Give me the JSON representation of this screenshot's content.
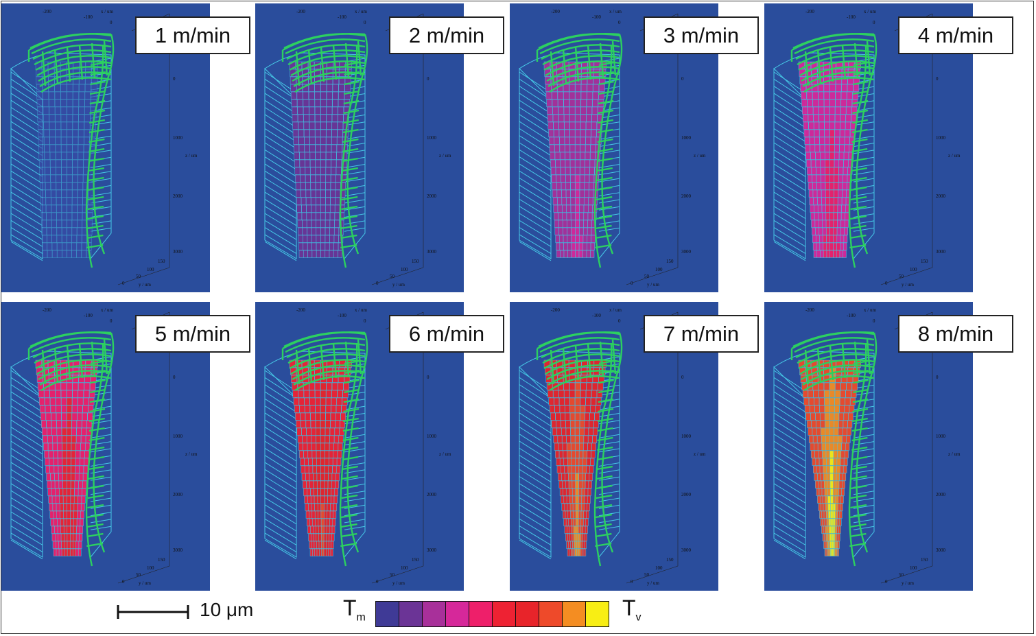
{
  "figure": {
    "panels": [
      {
        "label": "1 m/min",
        "heat": 0
      },
      {
        "label": "2 m/min",
        "heat": 1
      },
      {
        "label": "3 m/min",
        "heat": 2
      },
      {
        "label": "4 m/min",
        "heat": 3
      },
      {
        "label": "5 m/min",
        "heat": 4
      },
      {
        "label": "6 m/min",
        "heat": 5
      },
      {
        "label": "7 m/min",
        "heat": 6
      },
      {
        "label": "8 m/min",
        "heat": 7
      }
    ],
    "axes": {
      "x_title": "x / um",
      "x_ticks": [
        "-200",
        "-100",
        "0"
      ],
      "z_title": "z / um",
      "z_ticks": [
        "0",
        "1000",
        "2000",
        "3000"
      ],
      "y_title": "y / um",
      "y_ticks": [
        "150",
        "100",
        "50",
        "0"
      ]
    },
    "scale_bar": {
      "label": "10 μm"
    },
    "colorbar": {
      "min_label": "T",
      "min_sub": "m",
      "max_label": "T",
      "max_sub": "v",
      "colors": [
        "#3f3a96",
        "#6b3496",
        "#a8309a",
        "#d6289a",
        "#ee1f6a",
        "#ee2233",
        "#e8242a",
        "#ee4a2a",
        "#f48d22",
        "#f8ee14"
      ]
    },
    "colors": {
      "background": "#2a4d9c",
      "mesh": "#46c8e6",
      "tool": "#2cd060"
    }
  }
}
